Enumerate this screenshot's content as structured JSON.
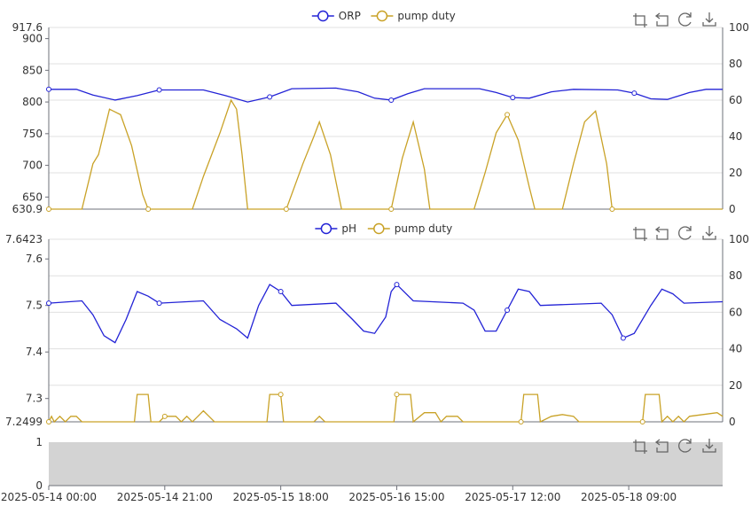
{
  "colors": {
    "series1": "#2323d6",
    "series2": "#c9a227",
    "grid": "#e0e0e0",
    "axis": "#6e7079",
    "panel_fill": "#d3d3d3"
  },
  "toolbox_icons": [
    "zoom-icon",
    "zoom-reset-icon",
    "restore-icon",
    "save-image-icon"
  ],
  "x_axis": {
    "ticks": [
      "2025-05-14 00:00",
      "2025-05-14 21:00",
      "2025-05-15 18:00",
      "2025-05-16 15:00",
      "2025-05-17 12:00",
      "2025-05-18 09:00"
    ],
    "range": [
      "2025-05-14 00:00",
      "2025-05-19 02:00"
    ]
  },
  "chart_data": [
    {
      "type": "line",
      "legend": [
        "ORP",
        "pump duty"
      ],
      "legend_position": "top-center",
      "y_left": {
        "min": 630.9,
        "max": 917.6,
        "ticks": [
          650,
          700,
          750,
          800,
          850,
          900
        ],
        "min_label": "630.9",
        "max_label": "917.6"
      },
      "y_right": {
        "min": 0,
        "max": 100,
        "ticks": [
          0,
          20,
          40,
          60,
          80,
          100
        ]
      },
      "series": [
        {
          "name": "ORP",
          "axis": "left",
          "points": [
            [
              "2025-05-14 00:00",
              820
            ],
            [
              "2025-05-14 05:00",
              820
            ],
            [
              "2025-05-14 08:00",
              811
            ],
            [
              "2025-05-14 12:00",
              803
            ],
            [
              "2025-05-14 16:00",
              810
            ],
            [
              "2025-05-14 20:00",
              819
            ],
            [
              "2025-05-15 04:00",
              819
            ],
            [
              "2025-05-15 08:00",
              810
            ],
            [
              "2025-05-15 12:00",
              800
            ],
            [
              "2025-05-15 16:00",
              808
            ],
            [
              "2025-05-15 20:00",
              821
            ],
            [
              "2025-05-16 04:00",
              822
            ],
            [
              "2025-05-16 08:00",
              816
            ],
            [
              "2025-05-16 11:00",
              806
            ],
            [
              "2025-05-16 14:00",
              803
            ],
            [
              "2025-05-16 17:00",
              813
            ],
            [
              "2025-05-16 20:00",
              821
            ],
            [
              "2025-05-17 06:00",
              821
            ],
            [
              "2025-05-17 09:00",
              815
            ],
            [
              "2025-05-17 12:00",
              807
            ],
            [
              "2025-05-17 15:00",
              806
            ],
            [
              "2025-05-17 19:00",
              816
            ],
            [
              "2025-05-17 23:00",
              820
            ],
            [
              "2025-05-18 07:00",
              819
            ],
            [
              "2025-05-18 10:00",
              814
            ],
            [
              "2025-05-18 13:00",
              805
            ],
            [
              "2025-05-18 16:00",
              804
            ],
            [
              "2025-05-18 20:00",
              815
            ],
            [
              "2025-05-18 23:00",
              820
            ],
            [
              "2025-05-19 02:00",
              820
            ]
          ]
        },
        {
          "name": "pump duty",
          "axis": "right",
          "points": [
            [
              "2025-05-14 00:00",
              0
            ],
            [
              "2025-05-14 06:00",
              0
            ],
            [
              "2025-05-14 08:00",
              25
            ],
            [
              "2025-05-14 09:00",
              30
            ],
            [
              "2025-05-14 11:00",
              55
            ],
            [
              "2025-05-14 13:00",
              52
            ],
            [
              "2025-05-14 15:00",
              35
            ],
            [
              "2025-05-14 17:00",
              8
            ],
            [
              "2025-05-14 18:00",
              0
            ],
            [
              "2025-05-15 02:00",
              0
            ],
            [
              "2025-05-15 04:00",
              18
            ],
            [
              "2025-05-15 07:00",
              42
            ],
            [
              "2025-05-15 09:00",
              60
            ],
            [
              "2025-05-15 10:00",
              55
            ],
            [
              "2025-05-15 11:00",
              30
            ],
            [
              "2025-05-15 12:00",
              0
            ],
            [
              "2025-05-15 19:00",
              0
            ],
            [
              "2025-05-15 22:00",
              25
            ],
            [
              "2025-05-16 00:00",
              40
            ],
            [
              "2025-05-16 01:00",
              48
            ],
            [
              "2025-05-16 03:00",
              30
            ],
            [
              "2025-05-16 05:00",
              0
            ],
            [
              "2025-05-16 14:00",
              0
            ],
            [
              "2025-05-16 16:00",
              28
            ],
            [
              "2025-05-16 18:00",
              48
            ],
            [
              "2025-05-16 20:00",
              22
            ],
            [
              "2025-05-16 21:00",
              0
            ],
            [
              "2025-05-17 05:00",
              0
            ],
            [
              "2025-05-17 07:00",
              20
            ],
            [
              "2025-05-17 09:00",
              42
            ],
            [
              "2025-05-17 11:00",
              52
            ],
            [
              "2025-05-17 13:00",
              38
            ],
            [
              "2025-05-17 15:00",
              12
            ],
            [
              "2025-05-17 16:00",
              0
            ],
            [
              "2025-05-17 21:00",
              0
            ],
            [
              "2025-05-17 23:00",
              25
            ],
            [
              "2025-05-18 01:00",
              48
            ],
            [
              "2025-05-18 03:00",
              54
            ],
            [
              "2025-05-18 05:00",
              25
            ],
            [
              "2025-05-18 06:00",
              0
            ],
            [
              "2025-05-19 02:00",
              0
            ]
          ]
        }
      ]
    },
    {
      "type": "line",
      "legend": [
        "pH",
        "pump duty"
      ],
      "legend_position": "top-center",
      "y_left": {
        "min": 7.2499,
        "max": 7.6423,
        "ticks": [
          7.3,
          7.4,
          7.5,
          7.6
        ],
        "min_label": "7.2499",
        "max_label": "7.6423"
      },
      "y_right": {
        "min": 0,
        "max": 100,
        "ticks": [
          0,
          20,
          40,
          60,
          80,
          100
        ]
      },
      "series": [
        {
          "name": "pH",
          "axis": "left",
          "points": [
            [
              "2025-05-14 00:00",
              7.505
            ],
            [
              "2025-05-14 06:00",
              7.51
            ],
            [
              "2025-05-14 08:00",
              7.48
            ],
            [
              "2025-05-14 10:00",
              7.435
            ],
            [
              "2025-05-14 12:00",
              7.42
            ],
            [
              "2025-05-14 14:00",
              7.47
            ],
            [
              "2025-05-14 16:00",
              7.53
            ],
            [
              "2025-05-14 18:00",
              7.52
            ],
            [
              "2025-05-14 20:00",
              7.505
            ],
            [
              "2025-05-15 04:00",
              7.51
            ],
            [
              "2025-05-15 07:00",
              7.47
            ],
            [
              "2025-05-15 10:00",
              7.45
            ],
            [
              "2025-05-15 12:00",
              7.43
            ],
            [
              "2025-05-15 14:00",
              7.5
            ],
            [
              "2025-05-15 16:00",
              7.545
            ],
            [
              "2025-05-15 18:00",
              7.53
            ],
            [
              "2025-05-15 20:00",
              7.5
            ],
            [
              "2025-05-16 04:00",
              7.505
            ],
            [
              "2025-05-16 07:00",
              7.47
            ],
            [
              "2025-05-16 09:00",
              7.445
            ],
            [
              "2025-05-16 11:00",
              7.44
            ],
            [
              "2025-05-16 13:00",
              7.475
            ],
            [
              "2025-05-16 14:00",
              7.53
            ],
            [
              "2025-05-16 15:00",
              7.545
            ],
            [
              "2025-05-16 18:00",
              7.51
            ],
            [
              "2025-05-17 03:00",
              7.505
            ],
            [
              "2025-05-17 05:00",
              7.49
            ],
            [
              "2025-05-17 07:00",
              7.445
            ],
            [
              "2025-05-17 09:00",
              7.445
            ],
            [
              "2025-05-17 11:00",
              7.49
            ],
            [
              "2025-05-17 13:00",
              7.535
            ],
            [
              "2025-05-17 15:00",
              7.53
            ],
            [
              "2025-05-17 17:00",
              7.5
            ],
            [
              "2025-05-18 04:00",
              7.505
            ],
            [
              "2025-05-18 06:00",
              7.48
            ],
            [
              "2025-05-18 08:00",
              7.43
            ],
            [
              "2025-05-18 10:00",
              7.44
            ],
            [
              "2025-05-18 13:00",
              7.5
            ],
            [
              "2025-05-18 15:00",
              7.535
            ],
            [
              "2025-05-18 17:00",
              7.525
            ],
            [
              "2025-05-18 19:00",
              7.505
            ],
            [
              "2025-05-19 02:00",
              7.508
            ]
          ]
        },
        {
          "name": "pump duty",
          "axis": "right",
          "points": [
            [
              "2025-05-14 00:00",
              0
            ],
            [
              "2025-05-14 00:30",
              3
            ],
            [
              "2025-05-14 01:00",
              0
            ],
            [
              "2025-05-14 02:00",
              3
            ],
            [
              "2025-05-14 03:00",
              0
            ],
            [
              "2025-05-14 04:00",
              3
            ],
            [
              "2025-05-14 05:00",
              3
            ],
            [
              "2025-05-14 06:00",
              0
            ],
            [
              "2025-05-14 15:30",
              0
            ],
            [
              "2025-05-14 16:00",
              15
            ],
            [
              "2025-05-14 18:00",
              15
            ],
            [
              "2025-05-14 18:30",
              0
            ],
            [
              "2025-05-14 20:00",
              0
            ],
            [
              "2025-05-14 21:00",
              3
            ],
            [
              "2025-05-14 23:00",
              3
            ],
            [
              "2025-05-15 00:00",
              0
            ],
            [
              "2025-05-15 01:00",
              3
            ],
            [
              "2025-05-15 02:00",
              0
            ],
            [
              "2025-05-15 03:00",
              3
            ],
            [
              "2025-05-15 04:00",
              6
            ],
            [
              "2025-05-15 05:00",
              3
            ],
            [
              "2025-05-15 06:00",
              0
            ],
            [
              "2025-05-15 15:30",
              0
            ],
            [
              "2025-05-15 16:00",
              15
            ],
            [
              "2025-05-15 18:00",
              15
            ],
            [
              "2025-05-15 18:30",
              0
            ],
            [
              "2025-05-16 00:00",
              0
            ],
            [
              "2025-05-16 01:00",
              3
            ],
            [
              "2025-05-16 02:00",
              0
            ],
            [
              "2025-05-16 14:30",
              0
            ],
            [
              "2025-05-16 15:00",
              15
            ],
            [
              "2025-05-16 17:30",
              15
            ],
            [
              "2025-05-16 18:00",
              0
            ],
            [
              "2025-05-16 20:00",
              5
            ],
            [
              "2025-05-16 22:00",
              5
            ],
            [
              "2025-05-16 23:00",
              0
            ],
            [
              "2025-05-17 00:00",
              3
            ],
            [
              "2025-05-17 02:00",
              3
            ],
            [
              "2025-05-17 03:00",
              0
            ],
            [
              "2025-05-17 13:30",
              0
            ],
            [
              "2025-05-17 14:00",
              15
            ],
            [
              "2025-05-17 16:30",
              15
            ],
            [
              "2025-05-17 17:00",
              0
            ],
            [
              "2025-05-17 19:00",
              3
            ],
            [
              "2025-05-17 21:00",
              4
            ],
            [
              "2025-05-17 23:00",
              3
            ],
            [
              "2025-05-18 00:00",
              0
            ],
            [
              "2025-05-18 11:30",
              0
            ],
            [
              "2025-05-18 12:00",
              15
            ],
            [
              "2025-05-18 14:30",
              15
            ],
            [
              "2025-05-18 15:00",
              0
            ],
            [
              "2025-05-18 16:00",
              3
            ],
            [
              "2025-05-18 17:00",
              0
            ],
            [
              "2025-05-18 18:00",
              3
            ],
            [
              "2025-05-18 19:00",
              0
            ],
            [
              "2025-05-18 20:00",
              3
            ],
            [
              "2025-05-19 01:00",
              5
            ],
            [
              "2025-05-19 02:00",
              3
            ]
          ]
        }
      ]
    },
    {
      "type": "area",
      "y_left": {
        "min": 0,
        "max": 1,
        "ticks": [
          0,
          1
        ]
      },
      "series": []
    }
  ]
}
